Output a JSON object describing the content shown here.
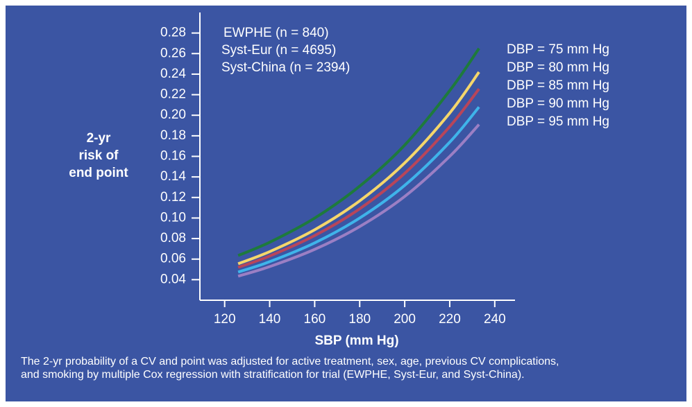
{
  "chart_data": {
    "type": "line",
    "x_label": "SBP (mm Hg)",
    "y_label_lines": [
      "2-yr",
      "risk of",
      "end point"
    ],
    "annotations": [
      "EWPHE (n = 840)",
      "Syst-Eur (n = 4695)",
      "Syst-China (n = 2394)"
    ],
    "caption": "The 2-yr probability of a CV and point was adjusted for active treatment, sex, age, previous CV complications, and smoking by multiple Cox regression with stratification for trial (EWPHE, Syst-Eur, and Syst-China).",
    "x": [
      126,
      140,
      160,
      180,
      200,
      220,
      233
    ],
    "series": [
      {
        "name": "DBP = 75 mm Hg",
        "color": "#1e7a3c",
        "values": [
          0.0635,
          0.0764,
          0.0999,
          0.131,
          0.171,
          0.224,
          0.265
        ]
      },
      {
        "name": "DBP = 80 mm Hg",
        "color": "#f5d66b",
        "values": [
          0.0555,
          0.0673,
          0.0886,
          0.1167,
          0.1536,
          0.2022,
          0.242
        ]
      },
      {
        "name": "DBP = 85 mm Hg",
        "color": "#b8455a",
        "values": [
          0.052,
          0.063,
          0.0829,
          0.109,
          0.1435,
          0.189,
          0.2256
        ]
      },
      {
        "name": "DBP = 90 mm Hg",
        "color": "#3fb4ea",
        "values": [
          0.0474,
          0.0575,
          0.0758,
          0.1,
          0.1318,
          0.1738,
          0.208
        ]
      },
      {
        "name": "DBP = 95 mm Hg",
        "color": "#9b7fc4",
        "values": [
          0.0434,
          0.0527,
          0.0695,
          0.0917,
          0.121,
          0.16,
          0.191
        ]
      }
    ],
    "xlim": [
      109,
      249
    ],
    "xticks": [
      120,
      140,
      160,
      180,
      200,
      220,
      240
    ],
    "ylim": [
      0.02,
      0.3
    ],
    "yticks": [
      {
        "value": 0.28,
        "label": "0.28"
      },
      {
        "value": 0.26,
        "label": "0.26"
      },
      {
        "value": 0.24,
        "label": "0.24"
      },
      {
        "value": 0.22,
        "label": "0.22"
      },
      {
        "value": 0.2,
        "label": "0.20"
      },
      {
        "value": 0.18,
        "label": "0.18"
      },
      {
        "value": 0.16,
        "label": "0.16"
      },
      {
        "value": 0.14,
        "label": "0.14"
      },
      {
        "value": 0.12,
        "label": "0.12"
      },
      {
        "value": 0.1,
        "label": "0.10"
      },
      {
        "value": 0.08,
        "label": "0.08"
      },
      {
        "value": 0.06,
        "label": "0.06"
      },
      {
        "value": 0.04,
        "label": "0.04"
      }
    ],
    "grid": false
  }
}
